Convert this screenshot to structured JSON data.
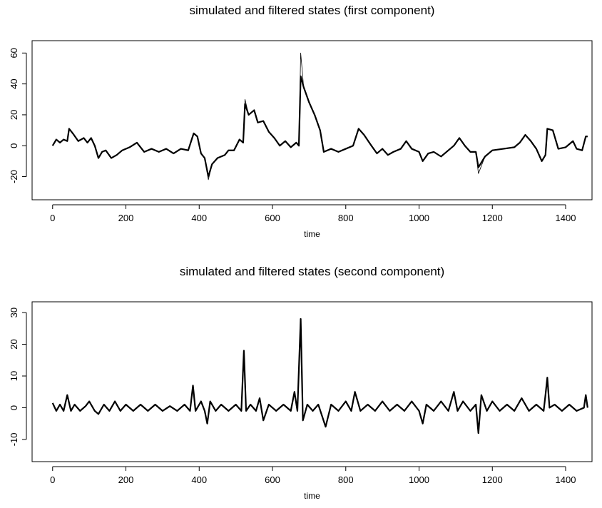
{
  "chart_data": [
    {
      "type": "line",
      "title": "simulated and filtered states (first component)",
      "xlabel": "time",
      "x": [
        0,
        10,
        20,
        30,
        40,
        45,
        55,
        70,
        85,
        95,
        105,
        115,
        125,
        135,
        145,
        160,
        175,
        190,
        210,
        230,
        250,
        270,
        290,
        310,
        330,
        350,
        370,
        385,
        395,
        405,
        415,
        425,
        435,
        450,
        470,
        480,
        495,
        510,
        520,
        525,
        535,
        550,
        560,
        575,
        590,
        605,
        620,
        635,
        650,
        665,
        672,
        677,
        685,
        700,
        715,
        730,
        740,
        760,
        780,
        800,
        820,
        835,
        850,
        870,
        885,
        900,
        915,
        930,
        950,
        965,
        980,
        1000,
        1010,
        1025,
        1040,
        1060,
        1080,
        1095,
        1110,
        1125,
        1140,
        1155,
        1162,
        1180,
        1200,
        1230,
        1260,
        1275,
        1290,
        1305,
        1320,
        1335,
        1345,
        1350,
        1365,
        1380,
        1400,
        1420,
        1430,
        1445,
        1455,
        1460
      ],
      "series": [
        {
          "color": "#000000",
          "line_width": 0.8,
          "values": [
            0,
            4,
            2,
            4,
            3,
            11,
            8,
            3,
            5,
            2,
            5,
            0,
            -8,
            -4,
            -3,
            -8,
            -6,
            -3,
            -1,
            2,
            -4,
            -2,
            -4,
            -2,
            -5,
            -2,
            -3,
            8,
            6,
            -5,
            -8,
            -22,
            -12,
            -8,
            -6,
            -3,
            -3,
            4,
            2,
            30,
            20,
            23,
            15,
            16,
            9,
            5,
            0,
            3,
            -1,
            2,
            0,
            60,
            38,
            28,
            20,
            10,
            -4,
            -2,
            -4,
            -2,
            0,
            11,
            7,
            0,
            -5,
            -2,
            -6,
            -4,
            -2,
            3,
            -2,
            -4,
            -10,
            -5,
            -4,
            -7,
            -3,
            0,
            5,
            0,
            -4,
            -4,
            -18,
            -7,
            -3,
            -2,
            -1,
            2,
            7,
            3,
            -2,
            -10,
            -6,
            11,
            10,
            -2,
            -1,
            3,
            -2,
            -3,
            6,
            6
          ]
        },
        {
          "color": "#000000",
          "line_width": 2.2,
          "values": [
            0,
            4,
            2,
            4,
            3,
            11,
            8,
            3,
            5,
            2,
            5,
            0,
            -8,
            -4,
            -3,
            -8,
            -6,
            -3,
            -1,
            2,
            -4,
            -2,
            -4,
            -2,
            -5,
            -2,
            -3,
            8,
            6,
            -5,
            -8,
            -20,
            -12,
            -8,
            -6,
            -3,
            -3,
            4,
            2,
            27,
            20,
            23,
            15,
            16,
            9,
            5,
            0,
            3,
            -1,
            2,
            0,
            45,
            38,
            28,
            20,
            10,
            -4,
            -2,
            -4,
            -2,
            0,
            11,
            7,
            0,
            -5,
            -2,
            -6,
            -4,
            -2,
            3,
            -2,
            -4,
            -10,
            -5,
            -4,
            -7,
            -3,
            0,
            5,
            0,
            -4,
            -4,
            -14,
            -7,
            -3,
            -2,
            -1,
            2,
            7,
            3,
            -2,
            -10,
            -6,
            11,
            10,
            -2,
            -1,
            3,
            -2,
            -3,
            6,
            6
          ]
        }
      ],
      "xlim": [
        -56,
        1472
      ],
      "ylim": [
        -35,
        68
      ],
      "xticks": [
        0,
        200,
        400,
        600,
        800,
        1000,
        1200,
        1400
      ],
      "yticks": [
        -20,
        0,
        20,
        40,
        60
      ]
    },
    {
      "type": "line",
      "title": "simulated and filtered states (second component)",
      "xlabel": "time",
      "x": [
        0,
        10,
        20,
        30,
        40,
        50,
        60,
        75,
        90,
        100,
        115,
        125,
        140,
        155,
        170,
        185,
        200,
        220,
        240,
        260,
        280,
        300,
        320,
        340,
        360,
        375,
        383,
        390,
        405,
        415,
        422,
        430,
        445,
        460,
        480,
        500,
        515,
        522,
        528,
        540,
        555,
        565,
        575,
        590,
        610,
        630,
        650,
        660,
        668,
        677,
        683,
        695,
        710,
        725,
        745,
        760,
        780,
        800,
        815,
        825,
        840,
        860,
        880,
        900,
        920,
        940,
        960,
        980,
        1000,
        1010,
        1020,
        1040,
        1060,
        1080,
        1095,
        1105,
        1120,
        1140,
        1155,
        1162,
        1170,
        1185,
        1200,
        1220,
        1240,
        1260,
        1280,
        1300,
        1320,
        1340,
        1345,
        1350,
        1356,
        1370,
        1390,
        1410,
        1430,
        1450,
        1455,
        1460
      ],
      "series": [
        {
          "color": "#000000",
          "line_width": 2.2,
          "values": [
            1.5,
            -1,
            1,
            -1,
            4,
            -1,
            1,
            -1,
            0.5,
            2,
            -1,
            -2,
            1,
            -1,
            2,
            -1,
            1,
            -1,
            1,
            -1,
            1,
            -1,
            0.5,
            -1,
            1,
            -1,
            7,
            -1,
            2,
            -1,
            -5,
            2,
            -1,
            1,
            -1,
            1,
            -1,
            18,
            -1,
            1,
            -1,
            3,
            -4,
            1,
            -1,
            1,
            -1,
            5,
            -1,
            28,
            -4,
            1,
            -1,
            1,
            -6,
            1,
            -1,
            2,
            -1,
            5,
            -1,
            1,
            -1,
            2,
            -1,
            1,
            -1,
            2,
            -1,
            -5,
            1,
            -1,
            2,
            -1,
            5,
            -1,
            2,
            -1,
            1,
            -8,
            4,
            -1,
            2,
            -1,
            1,
            -1,
            3,
            -1,
            1,
            -1,
            4,
            9.5,
            0,
            1,
            -1,
            1,
            -1,
            0,
            4,
            0
          ]
        }
      ],
      "xlim": [
        -56,
        1472
      ],
      "ylim": [
        -17,
        33.4
      ],
      "xticks": [
        0,
        200,
        400,
        600,
        800,
        1000,
        1200,
        1400
      ],
      "yticks": [
        -10,
        0,
        10,
        20,
        30
      ]
    }
  ]
}
